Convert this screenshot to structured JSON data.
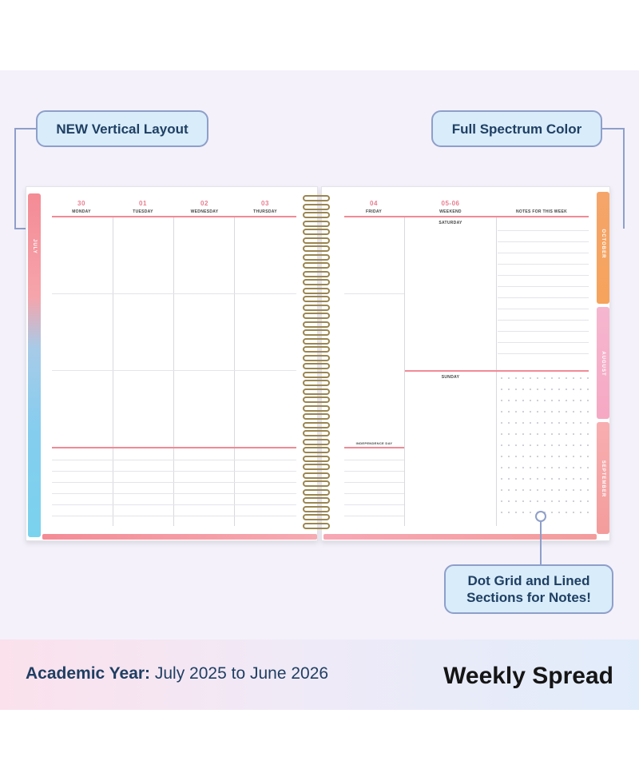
{
  "callouts": {
    "vertical_layout": "NEW Vertical Layout",
    "full_spectrum": "Full Spectrum Color",
    "dot_grid_line1": "Dot Grid and Lined",
    "dot_grid_line2": "Sections for Notes!"
  },
  "left_page": {
    "side_tab": "JULY",
    "days": [
      {
        "date": "30",
        "day": "MONDAY"
      },
      {
        "date": "01",
        "day": "TUESDAY"
      },
      {
        "date": "02",
        "day": "WEDNESDAY"
      },
      {
        "date": "03",
        "day": "THURSDAY"
      }
    ]
  },
  "right_page": {
    "days": [
      {
        "date": "04",
        "day": "FRIDAY"
      },
      {
        "date": "05-06",
        "day": "WEEKEND"
      }
    ],
    "notes_header": "NOTES FOR THIS WEEK",
    "saturday": "SATURDAY",
    "sunday": "SUNDAY",
    "holiday": "INDEPENDENCE DAY",
    "side_tabs": [
      "OCTOBER",
      "AUGUST",
      "SEPTEMBER"
    ]
  },
  "footer": {
    "academic_label": "Academic Year:",
    "academic_range": " July 2025 to June 2026",
    "weekly": "Weekly Spread"
  },
  "colors": {
    "accent_pink": "#f08a96",
    "callout_fill": "#d8ecfa",
    "callout_border": "#8e9fc9",
    "navy_text": "#1f3f63",
    "coil_gold": "#9b8650"
  }
}
